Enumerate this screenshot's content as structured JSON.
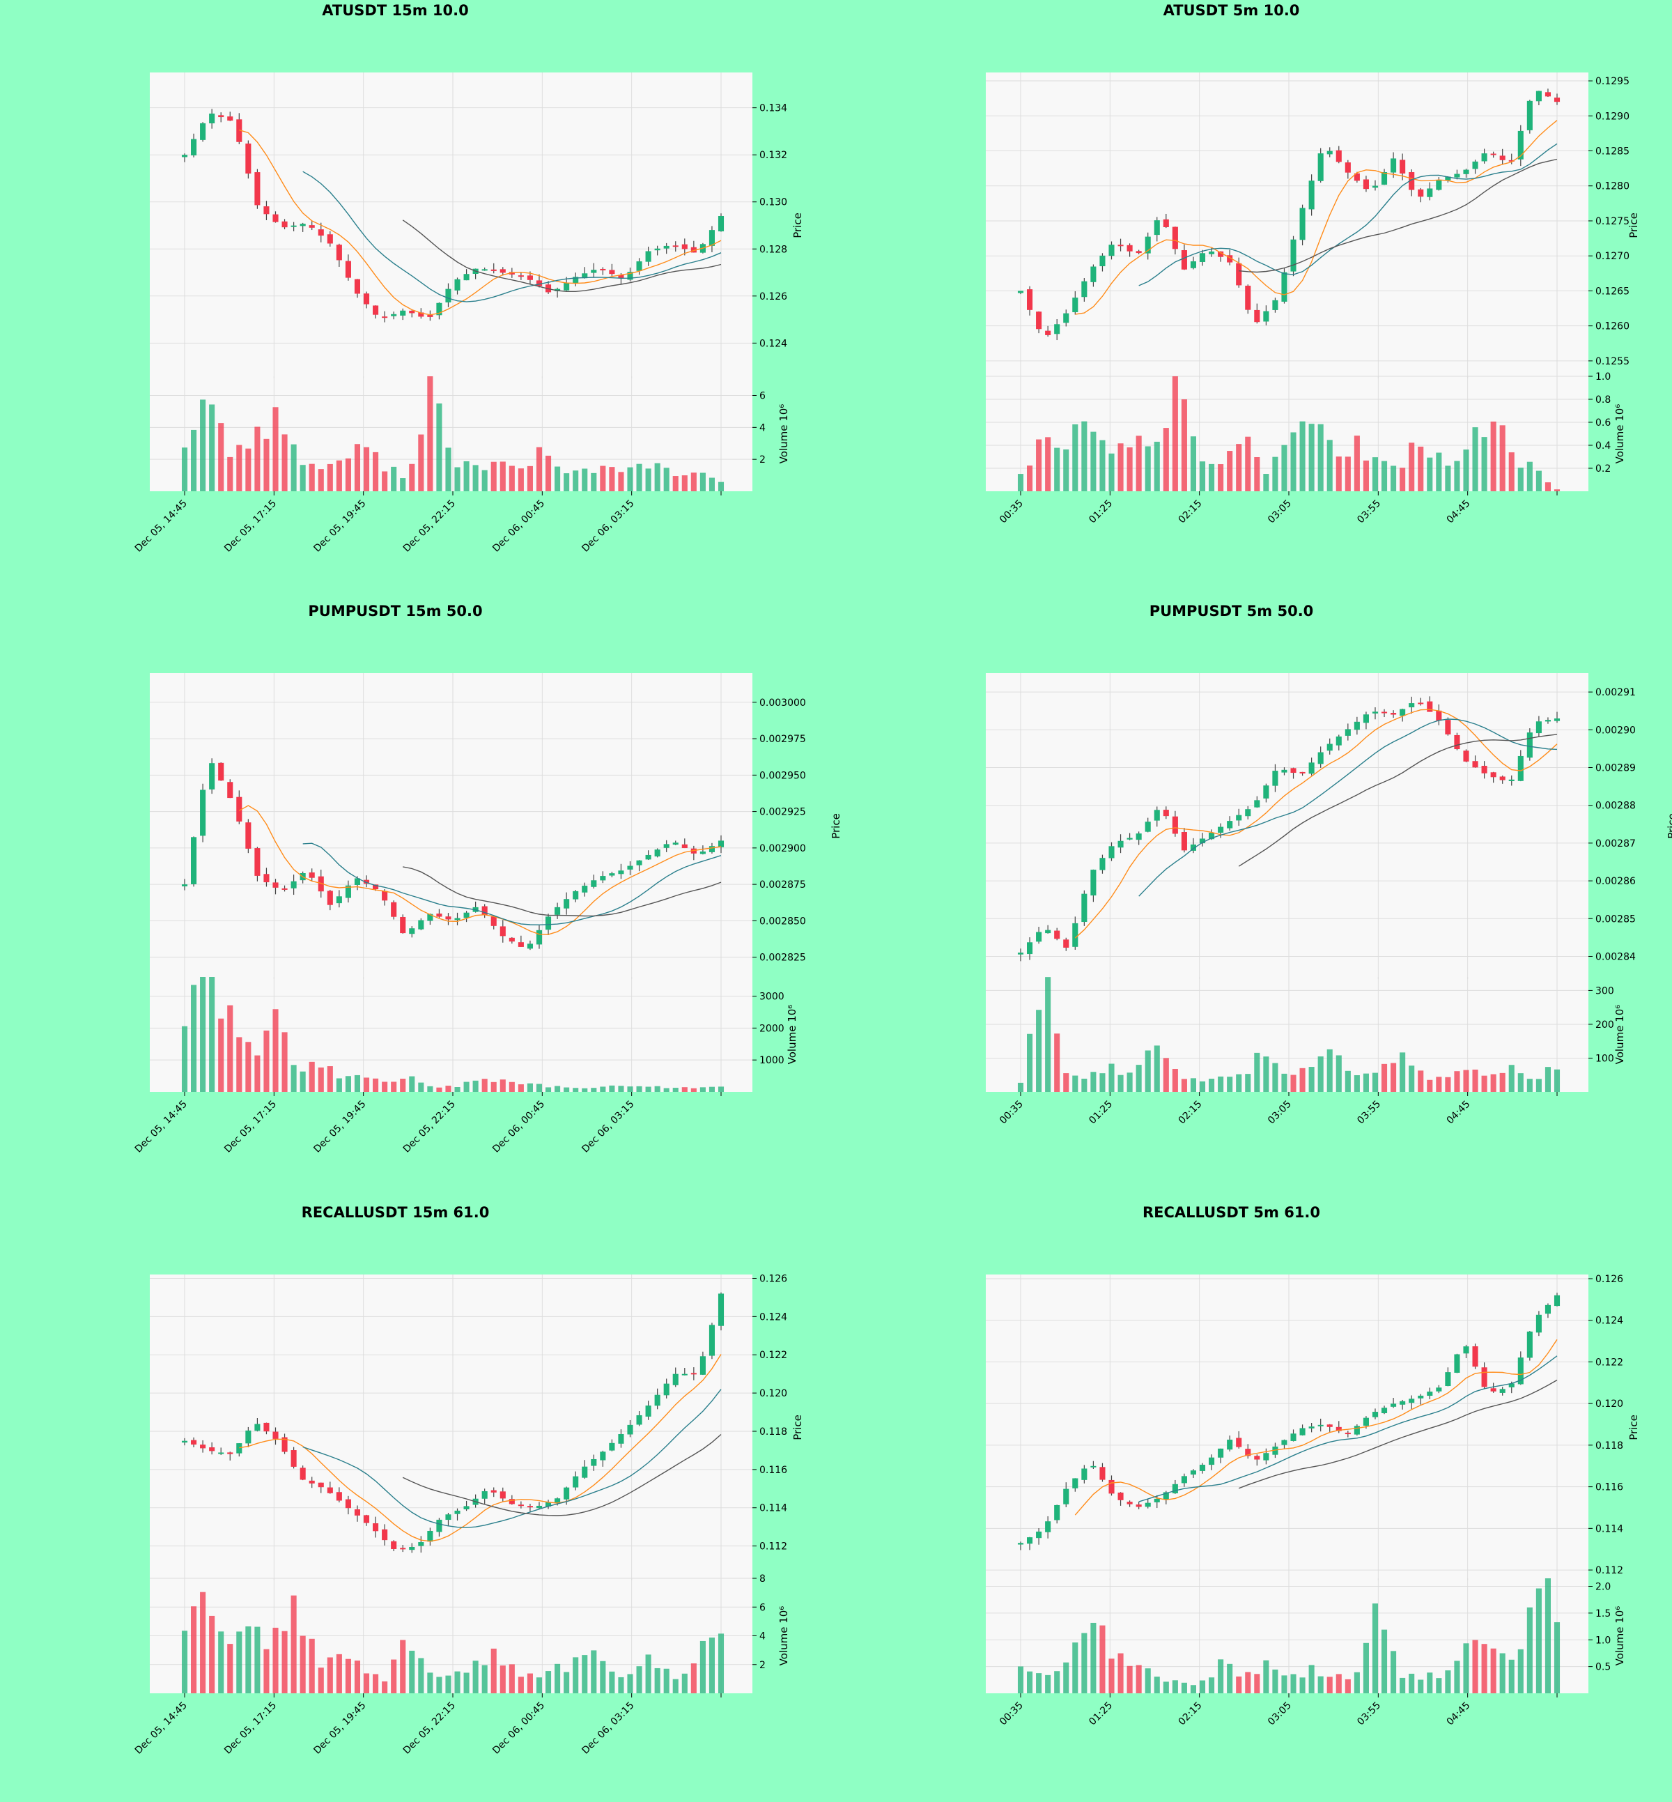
{
  "colors": {
    "figure_bg": "#8fffc4",
    "plot_bg": "#f8f8f8",
    "up": "#1fb37a",
    "down": "#f2374b",
    "ma_short": "#ff8c1a",
    "ma_mid": "#2a7f8c",
    "ma_long": "#555555",
    "grid": "#dddddd"
  },
  "chart_data": [
    {
      "type": "candlestick",
      "title": "ATUSDT 15m 10.0",
      "xlabel": "",
      "ylabel": "Price",
      "volume_label": "Volume  10⁶",
      "x_tick_labels": [
        "Dec 05, 14:45",
        "Dec 05, 17:15",
        "Dec 05, 19:45",
        "Dec 05, 22:15",
        "Dec 06, 00:45",
        "Dec 06, 03:15"
      ],
      "candles": 60,
      "price_ylim": [
        0.1225,
        0.1355
      ],
      "price_ticks": [
        0.124,
        0.126,
        0.128,
        0.13,
        0.132,
        0.134
      ],
      "price_tick_labels": [
        "0.124",
        "0.126",
        "0.128",
        "0.130",
        "0.132",
        "0.134"
      ],
      "price_anchors": [
        0.132,
        0.1338,
        0.1334,
        0.1298,
        0.1289,
        0.1291,
        0.1282,
        0.1262,
        0.125,
        0.1254,
        0.125,
        0.1266,
        0.1272,
        0.127,
        0.1268,
        0.1261,
        0.1268,
        0.1272,
        0.1267,
        0.1279,
        0.1282,
        0.1278,
        0.1294
      ],
      "volume_ylim": [
        0,
        7.2
      ],
      "volume_ticks": [
        2,
        4,
        6
      ],
      "volume_tick_labels": [
        "2",
        "4",
        "6"
      ],
      "volume_anchors": [
        3.1,
        6.2,
        2.5,
        3.3,
        4.9,
        2.2,
        1.4,
        2.0,
        2.6,
        1.6,
        0.9,
        6.9,
        1.4,
        1.6,
        1.8,
        1.4,
        2.5,
        1.0,
        1.4,
        1.5,
        1.3,
        1.6,
        1.2,
        1.0,
        0.7
      ]
    },
    {
      "type": "candlestick",
      "title": "ATUSDT 5m 10.0",
      "xlabel": "",
      "ylabel": "Price",
      "volume_label": "Volume  10⁶",
      "x_tick_labels": [
        "00:35",
        "01:25",
        "02:15",
        "03:05",
        "03:55",
        "04:45"
      ],
      "candles": 60,
      "price_ylim": [
        0.12525,
        0.12962
      ],
      "price_ticks": [
        0.1255,
        0.126,
        0.1265,
        0.127,
        0.1275,
        0.128,
        0.1285,
        0.129,
        0.1295
      ],
      "price_tick_labels": [
        "0.1255",
        "0.1260",
        "0.1265",
        "0.1270",
        "0.1275",
        "0.1280",
        "0.1285",
        "0.1290",
        "0.1295"
      ],
      "price_anchors": [
        0.1265,
        0.1258,
        0.1262,
        0.1268,
        0.1272,
        0.127,
        0.1276,
        0.1268,
        0.1271,
        0.1269,
        0.126,
        0.1264,
        0.1276,
        0.1286,
        0.1282,
        0.1279,
        0.1284,
        0.1278,
        0.1281,
        0.1282,
        0.1285,
        0.1283,
        0.1294,
        0.1292
      ],
      "volume_ylim": [
        0,
        1.0
      ],
      "volume_ticks": [
        0.2,
        0.4,
        0.6,
        0.8,
        1.0
      ],
      "volume_tick_labels": [
        "0.2",
        "0.4",
        "0.6",
        "0.8",
        "1.0"
      ],
      "volume_anchors": [
        0.17,
        0.45,
        0.38,
        0.62,
        0.27,
        0.5,
        0.3,
        0.95,
        0.33,
        0.2,
        0.43,
        0.15,
        0.4,
        0.62,
        0.32,
        0.4,
        0.3,
        0.25,
        0.45,
        0.2,
        0.33,
        0.72,
        0.3,
        0.22,
        0.02
      ]
    },
    {
      "type": "candlestick",
      "title": "PUMPUSDT 15m 50.0",
      "xlabel": "",
      "ylabel": "Price",
      "volume_label": "Volume  10⁶",
      "x_tick_labels": [
        "Dec 05, 14:45",
        "Dec 05, 17:15",
        "Dec 05, 19:45",
        "Dec 05, 22:15",
        "Dec 06, 00:45",
        "Dec 06, 03:15"
      ],
      "candles": 60,
      "price_ylim": [
        0.00281,
        0.00302
      ],
      "price_ticks": [
        0.002825,
        0.00285,
        0.002875,
        0.0029,
        0.002925,
        0.00295,
        0.002975,
        0.003
      ],
      "price_tick_labels": [
        "0.002825",
        "0.002850",
        "0.002875",
        "0.002900",
        "0.002925",
        "0.002950",
        "0.002975",
        "0.003000"
      ],
      "price_anchors": [
        0.002875,
        0.002962,
        0.00293,
        0.00288,
        0.00287,
        0.002885,
        0.00286,
        0.00288,
        0.00287,
        0.00284,
        0.002855,
        0.00285,
        0.00286,
        0.00284,
        0.00283,
        0.002855,
        0.00287,
        0.00288,
        0.002885,
        0.002895,
        0.002905,
        0.002895,
        0.002905
      ],
      "volume_ylim": [
        0,
        3600
      ],
      "volume_ticks": [
        1000,
        2000,
        3000
      ],
      "volume_tick_labels": [
        "1000",
        "2000",
        "3000"
      ],
      "volume_anchors": [
        2300,
        3550,
        2700,
        1000,
        2300,
        700,
        900,
        400,
        450,
        300,
        500,
        200,
        150,
        400,
        350,
        250,
        200,
        150,
        150,
        200,
        150,
        150,
        150,
        100,
        200
      ]
    },
    {
      "type": "candlestick",
      "title": "PUMPUSDT 5m 50.0",
      "xlabel": "",
      "ylabel": "Price",
      "volume_label": "Volume  10⁶",
      "x_tick_labels": [
        "00:35",
        "01:25",
        "02:15",
        "03:05",
        "03:55",
        "04:45"
      ],
      "candles": 60,
      "price_ylim": [
        0.002834,
        0.002915
      ],
      "price_ticks": [
        0.00284,
        0.00285,
        0.00286,
        0.00287,
        0.00288,
        0.00289,
        0.0029,
        0.00291
      ],
      "price_tick_labels": [
        "0.00284",
        "0.00285",
        "0.00286",
        "0.00287",
        "0.00288",
        "0.00289",
        "0.00290",
        "0.00291"
      ],
      "price_anchors": [
        0.002841,
        0.002848,
        0.002842,
        0.002862,
        0.00287,
        0.002872,
        0.00288,
        0.002868,
        0.002872,
        0.002876,
        0.00288,
        0.00289,
        0.002888,
        0.002895,
        0.0029,
        0.002905,
        0.002904,
        0.002908,
        0.002902,
        0.002892,
        0.002888,
        0.002886,
        0.002902,
        0.002903
      ],
      "volume_ylim": [
        0,
        340
      ],
      "volume_ticks": [
        100,
        200,
        300
      ],
      "volume_tick_labels": [
        "100",
        "200",
        "300"
      ],
      "volume_anchors": [
        30,
        340,
        50,
        40,
        70,
        50,
        130,
        50,
        40,
        50,
        40,
        140,
        50,
        90,
        130,
        40,
        60,
        110,
        50,
        40,
        60,
        50,
        70,
        30,
        80
      ]
    },
    {
      "type": "candlestick",
      "title": "RECALLUSDT 15m 61.0",
      "xlabel": "",
      "ylabel": "Price",
      "volume_label": "Volume  10⁶",
      "x_tick_labels": [
        "Dec 05, 14:45",
        "Dec 05, 17:15",
        "Dec 05, 19:45",
        "Dec 05, 22:15",
        "Dec 06, 00:45",
        "Dec 06, 03:15"
      ],
      "candles": 60,
      "price_ylim": [
        0.1102,
        0.1262
      ],
      "price_ticks": [
        0.112,
        0.114,
        0.116,
        0.118,
        0.12,
        0.122,
        0.124,
        0.126
      ],
      "price_tick_labels": [
        "0.112",
        "0.114",
        "0.116",
        "0.118",
        "0.120",
        "0.122",
        "0.124",
        "0.126"
      ],
      "price_anchors": [
        0.1175,
        0.117,
        0.1168,
        0.1185,
        0.1175,
        0.1155,
        0.115,
        0.114,
        0.113,
        0.1118,
        0.112,
        0.1135,
        0.114,
        0.115,
        0.1142,
        0.114,
        0.1145,
        0.116,
        0.117,
        0.1182,
        0.1195,
        0.121,
        0.121,
        0.1252
      ],
      "volume_ylim": [
        0,
        8.0
      ],
      "volume_ticks": [
        2,
        4,
        6,
        8
      ],
      "volume_tick_labels": [
        "2",
        "4",
        "6",
        "8"
      ],
      "volume_anchors": [
        4.8,
        7.8,
        2.8,
        4.3,
        3.5,
        5.8,
        2.0,
        3.0,
        1.5,
        1.0,
        4.3,
        1.2,
        1.5,
        1.8,
        2.8,
        1.2,
        1.5,
        1.8,
        2.8,
        1.5,
        1.2,
        2.5,
        1.0,
        2.5,
        5.0
      ]
    },
    {
      "type": "candlestick",
      "title": "RECALLUSDT 5m 61.0",
      "xlabel": "",
      "ylabel": "Price",
      "volume_label": "Volume  10⁶",
      "x_tick_labels": [
        "00:35",
        "01:25",
        "02:15",
        "03:05",
        "03:55",
        "04:45"
      ],
      "candles": 60,
      "price_ylim": [
        0.1115,
        0.1262
      ],
      "price_ticks": [
        0.112,
        0.114,
        0.116,
        0.118,
        0.12,
        0.122,
        0.124,
        0.126
      ],
      "price_tick_labels": [
        "0.112",
        "0.114",
        "0.116",
        "0.118",
        "0.120",
        "0.122",
        "0.124",
        "0.126"
      ],
      "price_anchors": [
        0.1133,
        0.114,
        0.116,
        0.1172,
        0.1155,
        0.115,
        0.1155,
        0.1165,
        0.1172,
        0.1183,
        0.1172,
        0.118,
        0.1188,
        0.119,
        0.1185,
        0.1195,
        0.12,
        0.1203,
        0.1208,
        0.123,
        0.1205,
        0.1208,
        0.124,
        0.1252
      ],
      "volume_ylim": [
        0,
        2.15
      ],
      "volume_ticks": [
        0.5,
        1.0,
        1.5,
        2.0
      ],
      "volume_tick_labels": [
        "0.5",
        "1.0",
        "1.5",
        "2.0"
      ],
      "volume_anchors": [
        0.55,
        0.3,
        0.7,
        1.45,
        0.85,
        0.55,
        0.3,
        0.2,
        0.15,
        0.55,
        0.3,
        0.6,
        0.3,
        0.45,
        0.35,
        0.25,
        1.85,
        0.3,
        0.3,
        0.35,
        0.9,
        0.85,
        0.5,
        2.1,
        1.6
      ]
    }
  ]
}
